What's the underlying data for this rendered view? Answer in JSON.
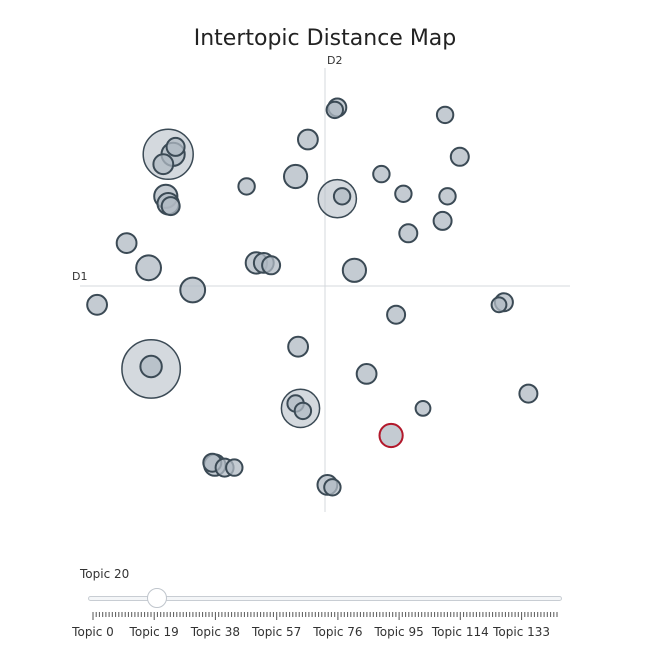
{
  "chart_data": {
    "type": "scatter",
    "title": "Intertopic Distance Map",
    "xlabel": "D1",
    "ylabel": "D2",
    "xlim": [
      -10,
      10
    ],
    "ylim": [
      -9,
      9
    ],
    "grid": false,
    "highlight_color": "#b2182b",
    "bubble_fill": "#b0bac3",
    "bubble_stroke": "#3b4a55",
    "points": [
      {
        "x": -6.4,
        "y": 5.5,
        "size": 2.5
      },
      {
        "x": -6.2,
        "y": 5.5,
        "size": 0.9
      },
      {
        "x": -6.6,
        "y": 5.1,
        "size": 0.7
      },
      {
        "x": -6.1,
        "y": 5.8,
        "size": 0.6
      },
      {
        "x": -6.5,
        "y": 3.8,
        "size": 0.9
      },
      {
        "x": -6.4,
        "y": 3.5,
        "size": 0.8
      },
      {
        "x": -6.3,
        "y": 3.4,
        "size": 0.6
      },
      {
        "x": -8.1,
        "y": 1.9,
        "size": 0.7
      },
      {
        "x": -7.2,
        "y": 0.9,
        "size": 1.0
      },
      {
        "x": -9.3,
        "y": -0.6,
        "size": 0.7
      },
      {
        "x": -5.4,
        "y": 0.0,
        "size": 1.0
      },
      {
        "x": -3.2,
        "y": 4.2,
        "size": 0.5
      },
      {
        "x": -2.8,
        "y": 1.1,
        "size": 0.8
      },
      {
        "x": -2.5,
        "y": 1.1,
        "size": 0.7
      },
      {
        "x": -2.2,
        "y": 1.0,
        "size": 0.6
      },
      {
        "x": -1.2,
        "y": 4.6,
        "size": 0.9
      },
      {
        "x": -0.7,
        "y": 6.1,
        "size": 0.7
      },
      {
        "x": 0.5,
        "y": 7.4,
        "size": 0.6
      },
      {
        "x": 0.4,
        "y": 7.3,
        "size": 0.5
      },
      {
        "x": 0.5,
        "y": 3.7,
        "size": 1.8
      },
      {
        "x": 0.7,
        "y": 3.8,
        "size": 0.5
      },
      {
        "x": 1.2,
        "y": 0.8,
        "size": 0.9
      },
      {
        "x": 2.3,
        "y": 4.7,
        "size": 0.5
      },
      {
        "x": 3.2,
        "y": 3.9,
        "size": 0.5
      },
      {
        "x": 3.4,
        "y": 2.3,
        "size": 0.6
      },
      {
        "x": 4.9,
        "y": 7.1,
        "size": 0.5
      },
      {
        "x": 5.5,
        "y": 5.4,
        "size": 0.6
      },
      {
        "x": 5.0,
        "y": 3.8,
        "size": 0.5
      },
      {
        "x": 4.8,
        "y": 2.8,
        "size": 0.6
      },
      {
        "x": 7.3,
        "y": -0.5,
        "size": 0.6
      },
      {
        "x": 7.1,
        "y": -0.6,
        "size": 0.4
      },
      {
        "x": 2.9,
        "y": -1.0,
        "size": 0.6
      },
      {
        "x": -7.1,
        "y": -3.2,
        "size": 3.0
      },
      {
        "x": -7.1,
        "y": -3.1,
        "size": 0.8
      },
      {
        "x": -1.1,
        "y": -2.3,
        "size": 0.7
      },
      {
        "x": 1.7,
        "y": -3.4,
        "size": 0.7
      },
      {
        "x": -1.0,
        "y": -4.8,
        "size": 1.8
      },
      {
        "x": -1.2,
        "y": -4.6,
        "size": 0.5
      },
      {
        "x": -0.9,
        "y": -4.9,
        "size": 0.5
      },
      {
        "x": 4.0,
        "y": -4.8,
        "size": 0.4
      },
      {
        "x": 2.7,
        "y": -5.9,
        "size": 0.9,
        "highlight": true
      },
      {
        "x": 8.3,
        "y": -4.2,
        "size": 0.6
      },
      {
        "x": -4.5,
        "y": -7.1,
        "size": 0.8
      },
      {
        "x": -4.6,
        "y": -7.0,
        "size": 0.6
      },
      {
        "x": -4.1,
        "y": -7.2,
        "size": 0.6
      },
      {
        "x": -3.7,
        "y": -7.2,
        "size": 0.5
      },
      {
        "x": 0.1,
        "y": -7.9,
        "size": 0.7
      },
      {
        "x": 0.3,
        "y": -8.0,
        "size": 0.5
      }
    ]
  },
  "slider": {
    "current_label": "Topic 20",
    "value": 20,
    "min": 0,
    "max": 144,
    "tick_labels": [
      {
        "label": "Topic 0",
        "value": 0
      },
      {
        "label": "Topic 19",
        "value": 19
      },
      {
        "label": "Topic 38",
        "value": 38
      },
      {
        "label": "Topic 57",
        "value": 57
      },
      {
        "label": "Topic 76",
        "value": 76
      },
      {
        "label": "Topic 95",
        "value": 95
      },
      {
        "label": "Topic 114",
        "value": 114
      },
      {
        "label": "Topic 133",
        "value": 133
      }
    ]
  }
}
